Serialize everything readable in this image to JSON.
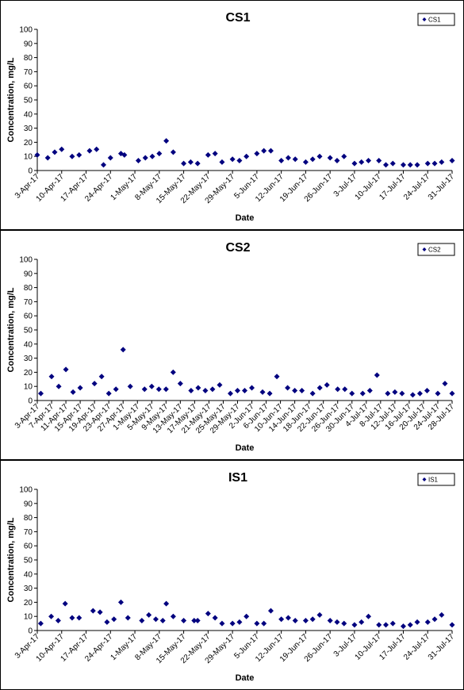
{
  "chart_data": [
    {
      "type": "scatter",
      "title": "CS1",
      "x_label": "Date",
      "y_label": "Concentration, mg/L",
      "legend": "upper right",
      "x": [
        "2017-04-03",
        "2017-04-06",
        "2017-04-08",
        "2017-04-10",
        "2017-04-13",
        "2017-04-15",
        "2017-04-18",
        "2017-04-20",
        "2017-04-22",
        "2017-04-24",
        "2017-04-27",
        "2017-04-28",
        "2017-05-02",
        "2017-05-04",
        "2017-05-06",
        "2017-05-08",
        "2017-05-10",
        "2017-05-12",
        "2017-05-15",
        "2017-05-17",
        "2017-05-19",
        "2017-05-22",
        "2017-05-24",
        "2017-05-26",
        "2017-05-29",
        "2017-05-31",
        "2017-06-02",
        "2017-06-05",
        "2017-06-07",
        "2017-06-09",
        "2017-06-12",
        "2017-06-14",
        "2017-06-16",
        "2017-06-19",
        "2017-06-21",
        "2017-06-23",
        "2017-06-26",
        "2017-06-28",
        "2017-06-30",
        "2017-07-03",
        "2017-07-05",
        "2017-07-07",
        "2017-07-10",
        "2017-07-12",
        "2017-07-14",
        "2017-07-17",
        "2017-07-19",
        "2017-07-21",
        "2017-07-24",
        "2017-07-26",
        "2017-07-28",
        "2017-07-31"
      ],
      "series": [
        {
          "name": "CS1",
          "color": "#00007f",
          "values": [
            11,
            9,
            13,
            15,
            10,
            11,
            14,
            15,
            4,
            9,
            12,
            11,
            7,
            9,
            10,
            12,
            21,
            13,
            5,
            6,
            5,
            11,
            12,
            6,
            8,
            7,
            10,
            12,
            14,
            14,
            7,
            9,
            8,
            6,
            8,
            10,
            9,
            7,
            10,
            5,
            6,
            7,
            7,
            4,
            5,
            4,
            4,
            4,
            5,
            5,
            6,
            7
          ]
        }
      ],
      "xlim": [
        "2017-04-03",
        "2017-07-31"
      ],
      "xticks": [
        {
          "value": "2017-04-03",
          "label": "3-Apr-17"
        },
        {
          "value": "2017-04-10",
          "label": "10-Apr-17"
        },
        {
          "value": "2017-04-17",
          "label": "17-Apr-17"
        },
        {
          "value": "2017-04-24",
          "label": "24-Apr-17"
        },
        {
          "value": "2017-05-01",
          "label": "1-May-17"
        },
        {
          "value": "2017-05-08",
          "label": "8-May-17"
        },
        {
          "value": "2017-05-15",
          "label": "15-May-17"
        },
        {
          "value": "2017-05-22",
          "label": "22-May-17"
        },
        {
          "value": "2017-05-29",
          "label": "29-May-17"
        },
        {
          "value": "2017-06-05",
          "label": "5-Jun-17"
        },
        {
          "value": "2017-06-12",
          "label": "12-Jun-17"
        },
        {
          "value": "2017-06-19",
          "label": "19-Jun-17"
        },
        {
          "value": "2017-06-26",
          "label": "26-Jun-17"
        },
        {
          "value": "2017-07-03",
          "label": "3-Jul-17"
        },
        {
          "value": "2017-07-10",
          "label": "10-Jul-17"
        },
        {
          "value": "2017-07-17",
          "label": "17-Jul-17"
        },
        {
          "value": "2017-07-24",
          "label": "24-Jul-17"
        },
        {
          "value": "2017-07-31",
          "label": "31-Jul-17"
        }
      ],
      "ylim": [
        0,
        100
      ],
      "yticks": [
        0,
        10,
        20,
        30,
        40,
        50,
        60,
        70,
        80,
        90,
        100
      ]
    },
    {
      "type": "scatter",
      "title": "CS2",
      "x_label": "Date",
      "y_label": "Concentration, mg/L",
      "legend": "upper right",
      "x": [
        "2017-04-04",
        "2017-04-07",
        "2017-04-09",
        "2017-04-11",
        "2017-04-13",
        "2017-04-15",
        "2017-04-19",
        "2017-04-21",
        "2017-04-23",
        "2017-04-25",
        "2017-04-27",
        "2017-04-29",
        "2017-05-03",
        "2017-05-05",
        "2017-05-07",
        "2017-05-09",
        "2017-05-11",
        "2017-05-13",
        "2017-05-16",
        "2017-05-18",
        "2017-05-20",
        "2017-05-22",
        "2017-05-24",
        "2017-05-27",
        "2017-05-29",
        "2017-05-31",
        "2017-06-02",
        "2017-06-05",
        "2017-06-07",
        "2017-06-09",
        "2017-06-12",
        "2017-06-14",
        "2017-06-16",
        "2017-06-19",
        "2017-06-21",
        "2017-06-23",
        "2017-06-26",
        "2017-06-28",
        "2017-06-30",
        "2017-07-03",
        "2017-07-05",
        "2017-07-07",
        "2017-07-10",
        "2017-07-12",
        "2017-07-14",
        "2017-07-17",
        "2017-07-19",
        "2017-07-21",
        "2017-07-24",
        "2017-07-26",
        "2017-07-28"
      ],
      "series": [
        {
          "name": "CS2",
          "color": "#00007f",
          "values": [
            5,
            17,
            10,
            22,
            6,
            9,
            12,
            17,
            5,
            8,
            36,
            10,
            8,
            10,
            8,
            8,
            20,
            12,
            7,
            9,
            7,
            8,
            11,
            5,
            7,
            7,
            9,
            6,
            5,
            17,
            9,
            7,
            7,
            5,
            9,
            11,
            8,
            8,
            5,
            5,
            7,
            18,
            5,
            6,
            5,
            4,
            5,
            7,
            5,
            12,
            5
          ]
        }
      ],
      "xlim": [
        "2017-04-03",
        "2017-07-28"
      ],
      "xticks": [
        {
          "value": "2017-04-03",
          "label": "3-Apr-17"
        },
        {
          "value": "2017-04-07",
          "label": "7-Apr-17"
        },
        {
          "value": "2017-04-11",
          "label": "11-Apr-17"
        },
        {
          "value": "2017-04-15",
          "label": "15-Apr-17"
        },
        {
          "value": "2017-04-19",
          "label": "19-Apr-17"
        },
        {
          "value": "2017-04-23",
          "label": "23-Apr-17"
        },
        {
          "value": "2017-04-27",
          "label": "27-Apr-17"
        },
        {
          "value": "2017-05-01",
          "label": "1-May-17"
        },
        {
          "value": "2017-05-05",
          "label": "5-May-17"
        },
        {
          "value": "2017-05-09",
          "label": "9-May-17"
        },
        {
          "value": "2017-05-13",
          "label": "13-May-17"
        },
        {
          "value": "2017-05-17",
          "label": "17-May-17"
        },
        {
          "value": "2017-05-21",
          "label": "21-May-17"
        },
        {
          "value": "2017-05-25",
          "label": "25-May-17"
        },
        {
          "value": "2017-05-29",
          "label": "29-May-17"
        },
        {
          "value": "2017-06-02",
          "label": "2-Jun-17"
        },
        {
          "value": "2017-06-06",
          "label": "6-Jun-17"
        },
        {
          "value": "2017-06-10",
          "label": "10-Jun-17"
        },
        {
          "value": "2017-06-14",
          "label": "14-Jun-17"
        },
        {
          "value": "2017-06-18",
          "label": "18-Jun-17"
        },
        {
          "value": "2017-06-22",
          "label": "22-Jun-17"
        },
        {
          "value": "2017-06-26",
          "label": "26-Jun-17"
        },
        {
          "value": "2017-06-30",
          "label": "30-Jun-17"
        },
        {
          "value": "2017-07-04",
          "label": "4-Jul-17"
        },
        {
          "value": "2017-07-08",
          "label": "8-Jul-17"
        },
        {
          "value": "2017-07-12",
          "label": "12-Jul-17"
        },
        {
          "value": "2017-07-16",
          "label": "16-Jul-17"
        },
        {
          "value": "2017-07-20",
          "label": "20-Jul-17"
        },
        {
          "value": "2017-07-24",
          "label": "24-Jul-17"
        },
        {
          "value": "2017-07-28",
          "label": "28-Jul-17"
        }
      ],
      "ylim": [
        0,
        100
      ],
      "yticks": [
        0,
        10,
        20,
        30,
        40,
        50,
        60,
        70,
        80,
        90,
        100
      ]
    },
    {
      "type": "scatter",
      "title": "IS1",
      "x_label": "Date",
      "y_label": "Concentration, mg/L",
      "legend": "upper right",
      "x": [
        "2017-04-04",
        "2017-04-07",
        "2017-04-09",
        "2017-04-11",
        "2017-04-13",
        "2017-04-15",
        "2017-04-19",
        "2017-04-21",
        "2017-04-23",
        "2017-04-25",
        "2017-04-27",
        "2017-04-29",
        "2017-05-03",
        "2017-05-05",
        "2017-05-07",
        "2017-05-09",
        "2017-05-10",
        "2017-05-12",
        "2017-05-15",
        "2017-05-18",
        "2017-05-19",
        "2017-05-22",
        "2017-05-24",
        "2017-05-26",
        "2017-05-29",
        "2017-05-31",
        "2017-06-02",
        "2017-06-05",
        "2017-06-07",
        "2017-06-09",
        "2017-06-12",
        "2017-06-14",
        "2017-06-16",
        "2017-06-19",
        "2017-06-21",
        "2017-06-23",
        "2017-06-26",
        "2017-06-28",
        "2017-06-30",
        "2017-07-03",
        "2017-07-05",
        "2017-07-07",
        "2017-07-10",
        "2017-07-12",
        "2017-07-14",
        "2017-07-17",
        "2017-07-19",
        "2017-07-21",
        "2017-07-24",
        "2017-07-26",
        "2017-07-28",
        "2017-07-31"
      ],
      "series": [
        {
          "name": "IS1",
          "color": "#00007f",
          "values": [
            5,
            10,
            7,
            19,
            9,
            9,
            14,
            13,
            6,
            8,
            20,
            9,
            7,
            11,
            8,
            7,
            19,
            10,
            7,
            7,
            7,
            12,
            9,
            5,
            5,
            6,
            10,
            5,
            5,
            14,
            8,
            9,
            7,
            7,
            8,
            11,
            7,
            6,
            5,
            4,
            6,
            10,
            4,
            4,
            5,
            3,
            4,
            6,
            6,
            8,
            11,
            4
          ]
        }
      ],
      "xlim": [
        "2017-04-03",
        "2017-07-31"
      ],
      "xticks": [
        {
          "value": "2017-04-03",
          "label": "3-Apr-17"
        },
        {
          "value": "2017-04-10",
          "label": "10-Apr-17"
        },
        {
          "value": "2017-04-17",
          "label": "17-Apr-17"
        },
        {
          "value": "2017-04-24",
          "label": "24-Apr-17"
        },
        {
          "value": "2017-05-01",
          "label": "1-May-17"
        },
        {
          "value": "2017-05-08",
          "label": "8-May-17"
        },
        {
          "value": "2017-05-15",
          "label": "15-May-17"
        },
        {
          "value": "2017-05-22",
          "label": "22-May-17"
        },
        {
          "value": "2017-05-29",
          "label": "29-May-17"
        },
        {
          "value": "2017-06-05",
          "label": "5-Jun-17"
        },
        {
          "value": "2017-06-12",
          "label": "12-Jun-17"
        },
        {
          "value": "2017-06-19",
          "label": "19-Jun-17"
        },
        {
          "value": "2017-06-26",
          "label": "26-Jun-17"
        },
        {
          "value": "2017-07-03",
          "label": "3-Jul-17"
        },
        {
          "value": "2017-07-10",
          "label": "10-Jul-17"
        },
        {
          "value": "2017-07-17",
          "label": "17-Jul-17"
        },
        {
          "value": "2017-07-24",
          "label": "24-Jul-17"
        },
        {
          "value": "2017-07-31",
          "label": "31-Jul-17"
        }
      ],
      "ylim": [
        0,
        100
      ],
      "yticks": [
        0,
        10,
        20,
        30,
        40,
        50,
        60,
        70,
        80,
        90,
        100
      ]
    }
  ]
}
